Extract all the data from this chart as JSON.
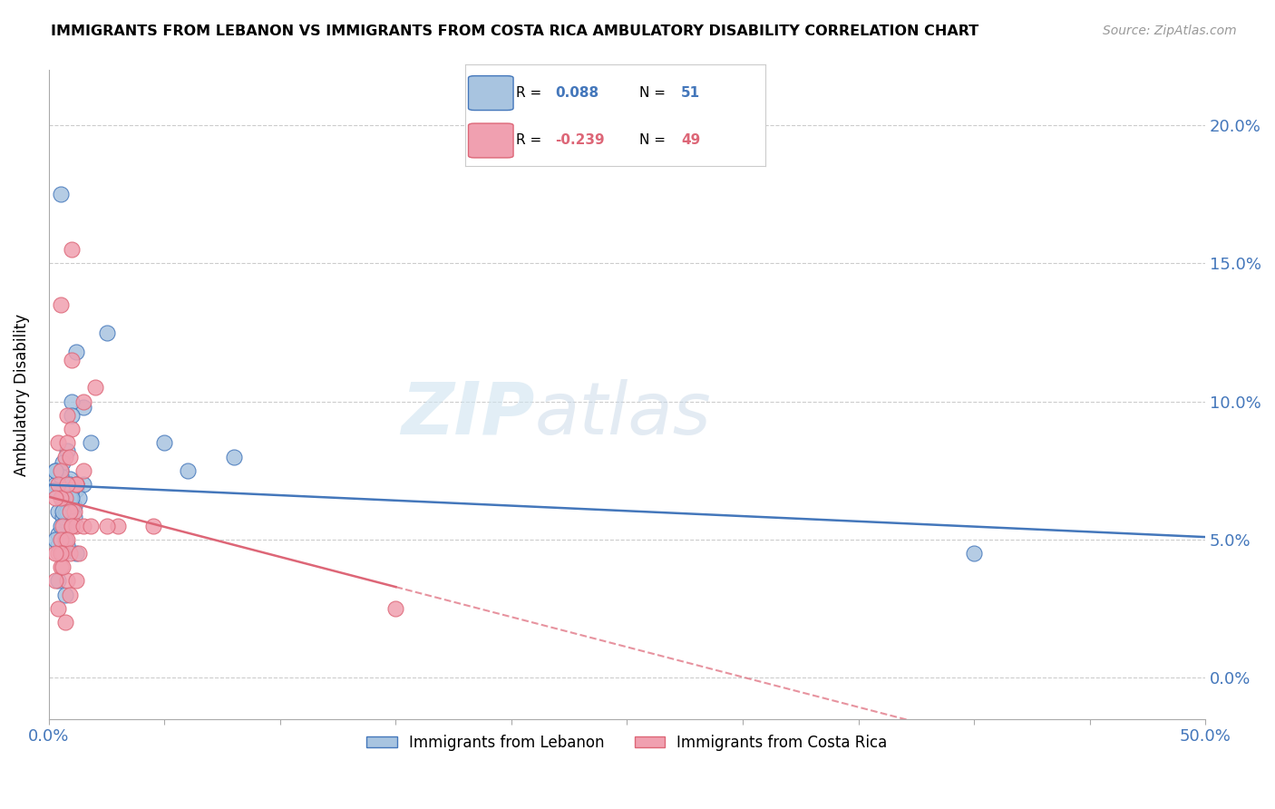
{
  "title": "IMMIGRANTS FROM LEBANON VS IMMIGRANTS FROM COSTA RICA AMBULATORY DISABILITY CORRELATION CHART",
  "source": "Source: ZipAtlas.com",
  "ylabel": "Ambulatory Disability",
  "ytick_vals": [
    0.0,
    5.0,
    10.0,
    15.0,
    20.0
  ],
  "xlim": [
    0.0,
    50.0
  ],
  "ylim": [
    -1.5,
    22.0
  ],
  "legend_blue_r": "0.088",
  "legend_blue_n": "51",
  "legend_pink_r": "-0.239",
  "legend_pink_n": "49",
  "blue_color": "#a8c4e0",
  "pink_color": "#f0a0b0",
  "blue_line_color": "#4477bb",
  "pink_line_color": "#dd6677",
  "legend_blue_label": "Immigrants from Lebanon",
  "legend_pink_label": "Immigrants from Costa Rica",
  "blue_points_x": [
    1.2,
    1.5,
    2.5,
    1.0,
    1.8,
    0.5,
    1.0,
    0.8,
    0.3,
    0.6,
    1.2,
    0.9,
    1.5,
    0.4,
    0.7,
    1.1,
    0.5,
    0.8,
    0.3,
    0.6,
    0.9,
    1.3,
    0.4,
    0.7,
    1.0,
    0.5,
    0.3,
    0.6,
    0.8,
    1.1,
    5.0,
    6.0,
    8.0,
    0.4,
    0.7,
    0.9,
    1.2,
    0.5,
    0.8,
    1.0,
    0.3,
    0.6,
    0.9,
    1.2,
    40.0,
    0.4,
    0.7,
    0.5,
    0.3,
    0.6,
    1.0
  ],
  "blue_points_y": [
    11.8,
    9.8,
    12.5,
    10.0,
    8.5,
    7.5,
    9.5,
    8.2,
    7.0,
    7.8,
    6.8,
    7.2,
    7.0,
    6.0,
    6.5,
    6.2,
    7.3,
    5.5,
    6.8,
    5.8,
    7.0,
    6.5,
    5.2,
    6.0,
    6.8,
    5.5,
    7.5,
    6.5,
    6.0,
    5.8,
    8.5,
    7.5,
    8.0,
    4.8,
    5.0,
    6.5,
    4.5,
    4.5,
    4.8,
    6.2,
    5.0,
    4.5,
    6.5,
    7.0,
    4.5,
    3.5,
    3.0,
    17.5,
    7.5,
    6.0,
    6.5
  ],
  "pink_points_x": [
    0.5,
    1.0,
    1.5,
    2.0,
    0.8,
    1.2,
    0.4,
    0.7,
    1.0,
    0.5,
    0.8,
    1.2,
    1.5,
    0.4,
    0.7,
    0.9,
    1.1,
    0.5,
    0.8,
    1.0,
    0.3,
    0.6,
    0.9,
    1.2,
    0.4,
    0.7,
    1.0,
    1.5,
    0.5,
    0.8,
    3.0,
    4.5,
    1.8,
    2.5,
    0.6,
    0.9,
    1.3,
    0.5,
    0.8,
    0.3,
    0.6,
    0.9,
    1.2,
    15.0,
    0.4,
    0.7,
    1.0,
    0.5,
    0.3
  ],
  "pink_points_y": [
    13.5,
    11.5,
    10.0,
    10.5,
    9.5,
    7.0,
    8.5,
    8.0,
    9.0,
    7.5,
    8.5,
    7.0,
    7.5,
    7.0,
    6.5,
    8.0,
    6.0,
    6.5,
    7.0,
    5.5,
    6.5,
    5.5,
    6.0,
    5.5,
    4.5,
    5.0,
    5.5,
    5.5,
    5.0,
    5.0,
    5.5,
    5.5,
    5.5,
    5.5,
    4.5,
    4.5,
    4.5,
    4.0,
    3.5,
    3.5,
    4.0,
    3.0,
    3.5,
    2.5,
    2.5,
    2.0,
    15.5,
    4.5,
    4.5
  ],
  "watermark_zip": "ZIP",
  "watermark_atlas": "atlas",
  "background_color": "#ffffff",
  "grid_color": "#cccccc",
  "xtick_positions": [
    0,
    5,
    10,
    15,
    20,
    25,
    30,
    35,
    40,
    45,
    50
  ],
  "axis_color": "#aaaaaa",
  "tick_label_color": "#4477bb"
}
